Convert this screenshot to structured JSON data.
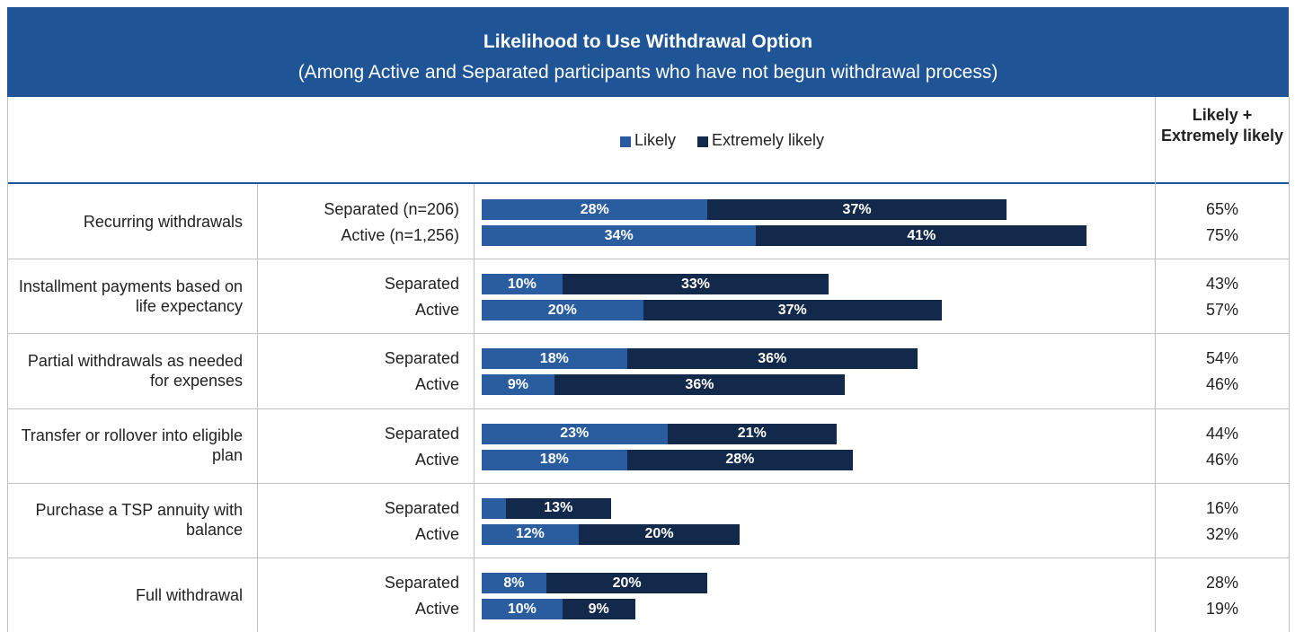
{
  "chart_data": {
    "type": "stacked-bar-table",
    "title": "Likelihood to Use Withdrawal Option",
    "subtitle": "(Among Active and Separated participants who have not begun withdrawal process)",
    "series": [
      {
        "name": "Likely",
        "color": "#2a5d9f"
      },
      {
        "name": "Extremely likely",
        "color": "#13294b"
      }
    ],
    "total_header": "Likely + Extremely likely",
    "xlim": [
      0,
      100
    ],
    "groups": [
      {
        "label": "Recurring withdrawals",
        "rows": [
          {
            "label": "Separated (n=206)",
            "values": [
              28,
              37
            ],
            "value_labels": [
              "28%",
              "37%"
            ],
            "total": 65,
            "total_label": "65%"
          },
          {
            "label": "Active (n=1,256)",
            "values": [
              34,
              41
            ],
            "value_labels": [
              "34%",
              "41%"
            ],
            "total": 75,
            "total_label": "75%"
          }
        ]
      },
      {
        "label": "Installment payments based on life expectancy",
        "rows": [
          {
            "label": "Separated",
            "values": [
              10,
              33
            ],
            "value_labels": [
              "10%",
              "33%"
            ],
            "total": 43,
            "total_label": "43%"
          },
          {
            "label": "Active",
            "values": [
              20,
              37
            ],
            "value_labels": [
              "20%",
              "37%"
            ],
            "total": 57,
            "total_label": "57%"
          }
        ]
      },
      {
        "label": "Partial withdrawals as needed for expenses",
        "rows": [
          {
            "label": "Separated",
            "values": [
              18,
              36
            ],
            "value_labels": [
              "18%",
              "36%"
            ],
            "total": 54,
            "total_label": "54%"
          },
          {
            "label": "Active",
            "values": [
              9,
              36
            ],
            "value_labels": [
              "9%",
              "36%"
            ],
            "total": 46,
            "total_label": "46%"
          }
        ]
      },
      {
        "label": "Transfer or rollover into eligible plan",
        "rows": [
          {
            "label": "Separated",
            "values": [
              23,
              21
            ],
            "value_labels": [
              "23%",
              "21%"
            ],
            "total": 44,
            "total_label": "44%"
          },
          {
            "label": "Active",
            "values": [
              18,
              28
            ],
            "value_labels": [
              "18%",
              "28%"
            ],
            "total": 46,
            "total_label": "46%"
          }
        ]
      },
      {
        "label": "Purchase a TSP annuity with balance",
        "rows": [
          {
            "label": "Separated",
            "values": [
              3,
              13
            ],
            "value_labels": [
              null,
              "13%"
            ],
            "total": 16,
            "total_label": "16%"
          },
          {
            "label": "Active",
            "values": [
              12,
              20
            ],
            "value_labels": [
              "12%",
              "20%"
            ],
            "total": 32,
            "total_label": "32%"
          }
        ]
      },
      {
        "label": "Full withdrawal",
        "rows": [
          {
            "label": "Separated",
            "values": [
              8,
              20
            ],
            "value_labels": [
              "8%",
              "20%"
            ],
            "total": 28,
            "total_label": "28%"
          },
          {
            "label": "Active",
            "values": [
              10,
              9
            ],
            "value_labels": [
              "10%",
              "9%"
            ],
            "total": 19,
            "total_label": "19%"
          }
        ]
      }
    ]
  }
}
